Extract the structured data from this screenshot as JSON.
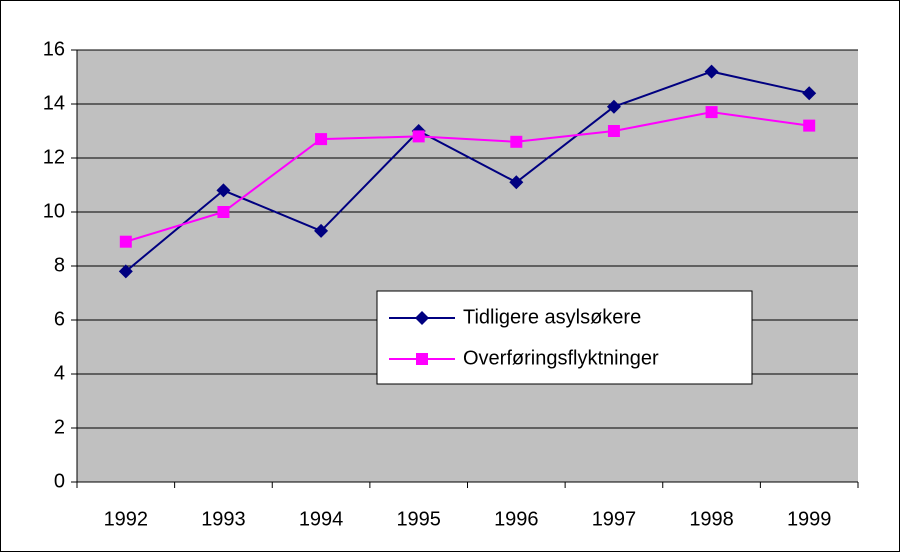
{
  "chart_data": {
    "type": "line",
    "categories": [
      "1992",
      "1993",
      "1994",
      "1995",
      "1996",
      "1997",
      "1998",
      "1999"
    ],
    "series": [
      {
        "name": "Tidligere asylsøkere",
        "color": "#000080",
        "marker": "diamond",
        "values": [
          7.8,
          10.8,
          9.3,
          13,
          11.1,
          13.9,
          15.2,
          14.4
        ]
      },
      {
        "name": "Overføringsflyktninger",
        "color": "#ff00ff",
        "marker": "square",
        "values": [
          8.9,
          10,
          12.7,
          12.8,
          12.6,
          13,
          13.7,
          13.2
        ]
      }
    ],
    "ylim": [
      0,
      16
    ],
    "yticks": [
      0,
      2,
      4,
      6,
      8,
      10,
      12,
      14,
      16
    ],
    "grid": true,
    "plot_background": "#c0c0c0"
  }
}
